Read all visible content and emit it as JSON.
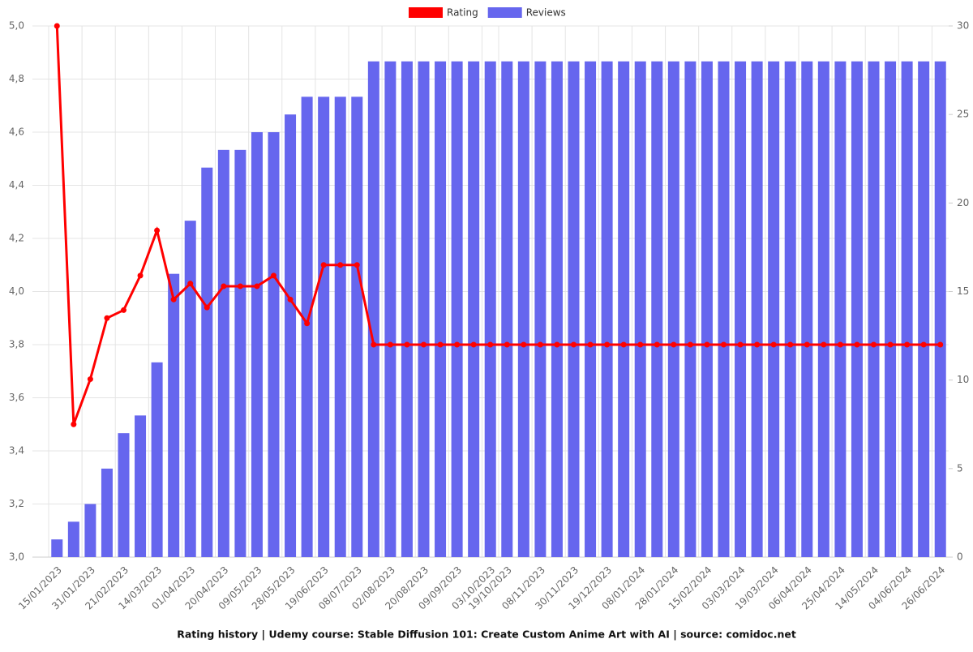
{
  "chart_data": {
    "type": "bar-line",
    "title": "Rating history | Udemy course: Stable Diffusion 101: Create Custom Anime Art with AI | source: comidoc.net",
    "categories": [
      "15/01/2023",
      null,
      "31/01/2023",
      null,
      "21/02/2023",
      null,
      "14/03/2023",
      null,
      "01/04/2023",
      null,
      "20/04/2023",
      null,
      "09/05/2023",
      null,
      "28/05/2023",
      null,
      "19/06/2023",
      null,
      "08/07/2023",
      null,
      "02/08/2023",
      null,
      "20/08/2023",
      null,
      "09/09/2023",
      null,
      "03/10/2023",
      "19/10/2023",
      null,
      "08/11/2023",
      null,
      "30/11/2023",
      null,
      "19/12/2023",
      null,
      "08/01/2024",
      null,
      "28/01/2024",
      null,
      "15/02/2024",
      null,
      "03/03/2024",
      null,
      "19/03/2024",
      null,
      "06/04/2024",
      null,
      "25/04/2024",
      null,
      "14/05/2024",
      null,
      "04/06/2024",
      null,
      "26/06/2024"
    ],
    "series": [
      {
        "name": "Rating",
        "color": "#ff0000",
        "kind": "line",
        "axis": "y",
        "values": [
          5,
          3.5,
          3.67,
          3.9,
          3.93,
          4.06,
          4.23,
          3.97,
          4.03,
          3.94,
          4.02,
          4.02,
          4.02,
          4.06,
          3.97,
          3.88,
          4.1,
          4.1,
          4.1,
          3.8,
          3.8,
          3.8,
          3.8,
          3.8,
          3.8,
          3.8,
          3.8,
          3.8,
          3.8,
          3.8,
          3.8,
          3.8,
          3.8,
          3.8,
          3.8,
          3.8,
          3.8,
          3.8,
          3.8,
          3.8,
          3.8,
          3.8,
          3.8,
          3.8,
          3.8,
          3.8,
          3.8,
          3.8,
          3.8,
          3.8,
          3.8,
          3.8,
          3.8,
          3.8
        ]
      },
      {
        "name": "Reviews",
        "color": "#6666ee",
        "kind": "bar",
        "axis": "y2",
        "values": [
          1,
          2,
          3,
          5,
          7,
          8,
          11,
          16,
          19,
          22,
          23,
          23,
          24,
          24,
          25,
          26,
          26,
          26,
          26,
          28,
          28,
          28,
          28,
          28,
          28,
          28,
          28,
          28,
          28,
          28,
          28,
          28,
          28,
          28,
          28,
          28,
          28,
          28,
          28,
          28,
          28,
          28,
          28,
          28,
          28,
          28,
          28,
          28,
          28,
          28,
          28,
          28,
          28,
          28
        ]
      }
    ],
    "ylim": [
      3,
      5
    ],
    "yticks": [
      {
        "value": 3,
        "label": "3,0"
      },
      {
        "value": 3.2,
        "label": "3,2"
      },
      {
        "value": 3.4,
        "label": "3,4"
      },
      {
        "value": 3.6,
        "label": "3,6"
      },
      {
        "value": 3.8,
        "label": "3,8"
      },
      {
        "value": 4,
        "label": "4,0"
      },
      {
        "value": 4.2,
        "label": "4,2"
      },
      {
        "value": 4.4,
        "label": "4,4"
      },
      {
        "value": 4.6,
        "label": "4,6"
      },
      {
        "value": 4.8,
        "label": "4,8"
      },
      {
        "value": 5,
        "label": "5,0"
      }
    ],
    "y2lim": [
      0,
      30
    ],
    "y2ticks": [
      0,
      5,
      10,
      15,
      20,
      25,
      30
    ],
    "grid": true,
    "legend": "top"
  }
}
